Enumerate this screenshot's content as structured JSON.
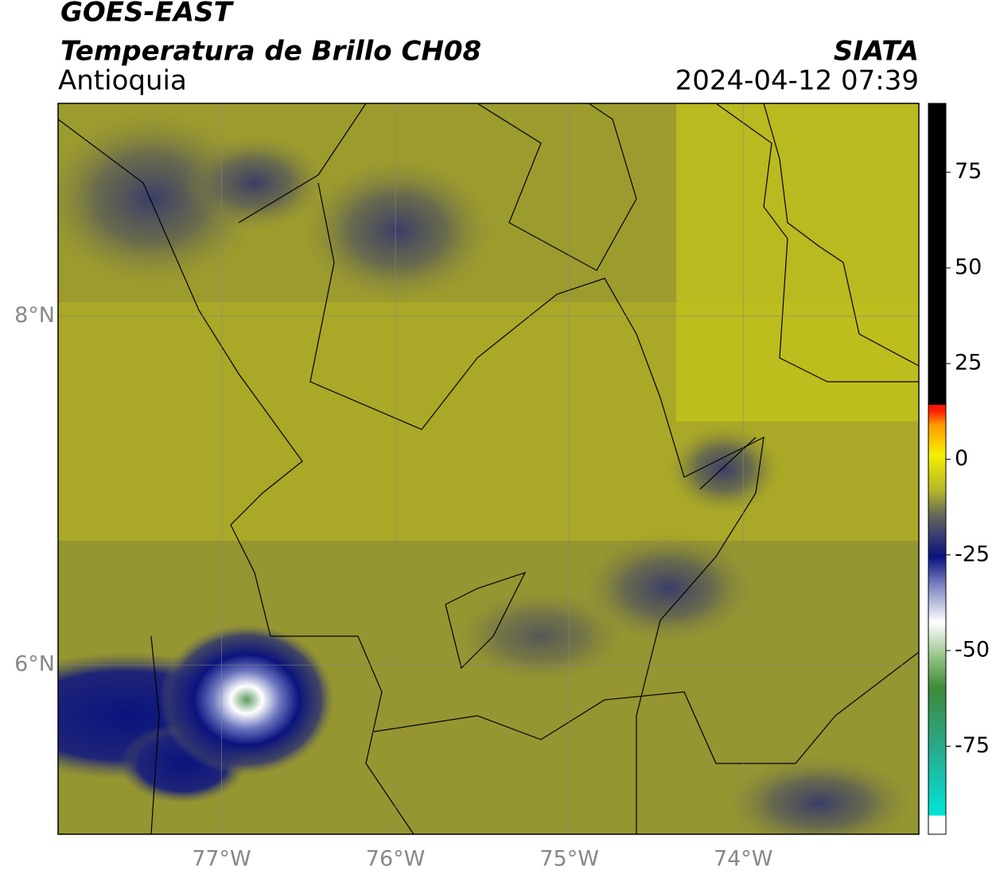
{
  "header": {
    "satellite": "GOES-EAST",
    "product": "Temperatura de Brillo CH08",
    "region": "Antioquia",
    "source": "SIATA",
    "datetime": "2024-04-12 07:39"
  },
  "map": {
    "lonlim": [
      -77.94,
      -72.99
    ],
    "latlim": [
      5.03,
      9.22
    ],
    "lon_ticks": [
      {
        "value": -77,
        "label": "77°W"
      },
      {
        "value": -76,
        "label": "76°W"
      },
      {
        "value": -75,
        "label": "75°W"
      },
      {
        "value": -74,
        "label": "74°W"
      }
    ],
    "lat_ticks": [
      {
        "value": 8,
        "label": "8°N"
      },
      {
        "value": 6,
        "label": "6°N"
      }
    ],
    "grid": true
  },
  "colorbar": {
    "lim": [
      -98,
      93
    ],
    "ticks": [
      75,
      50,
      25,
      0,
      -25,
      -50,
      -75
    ]
  }
}
